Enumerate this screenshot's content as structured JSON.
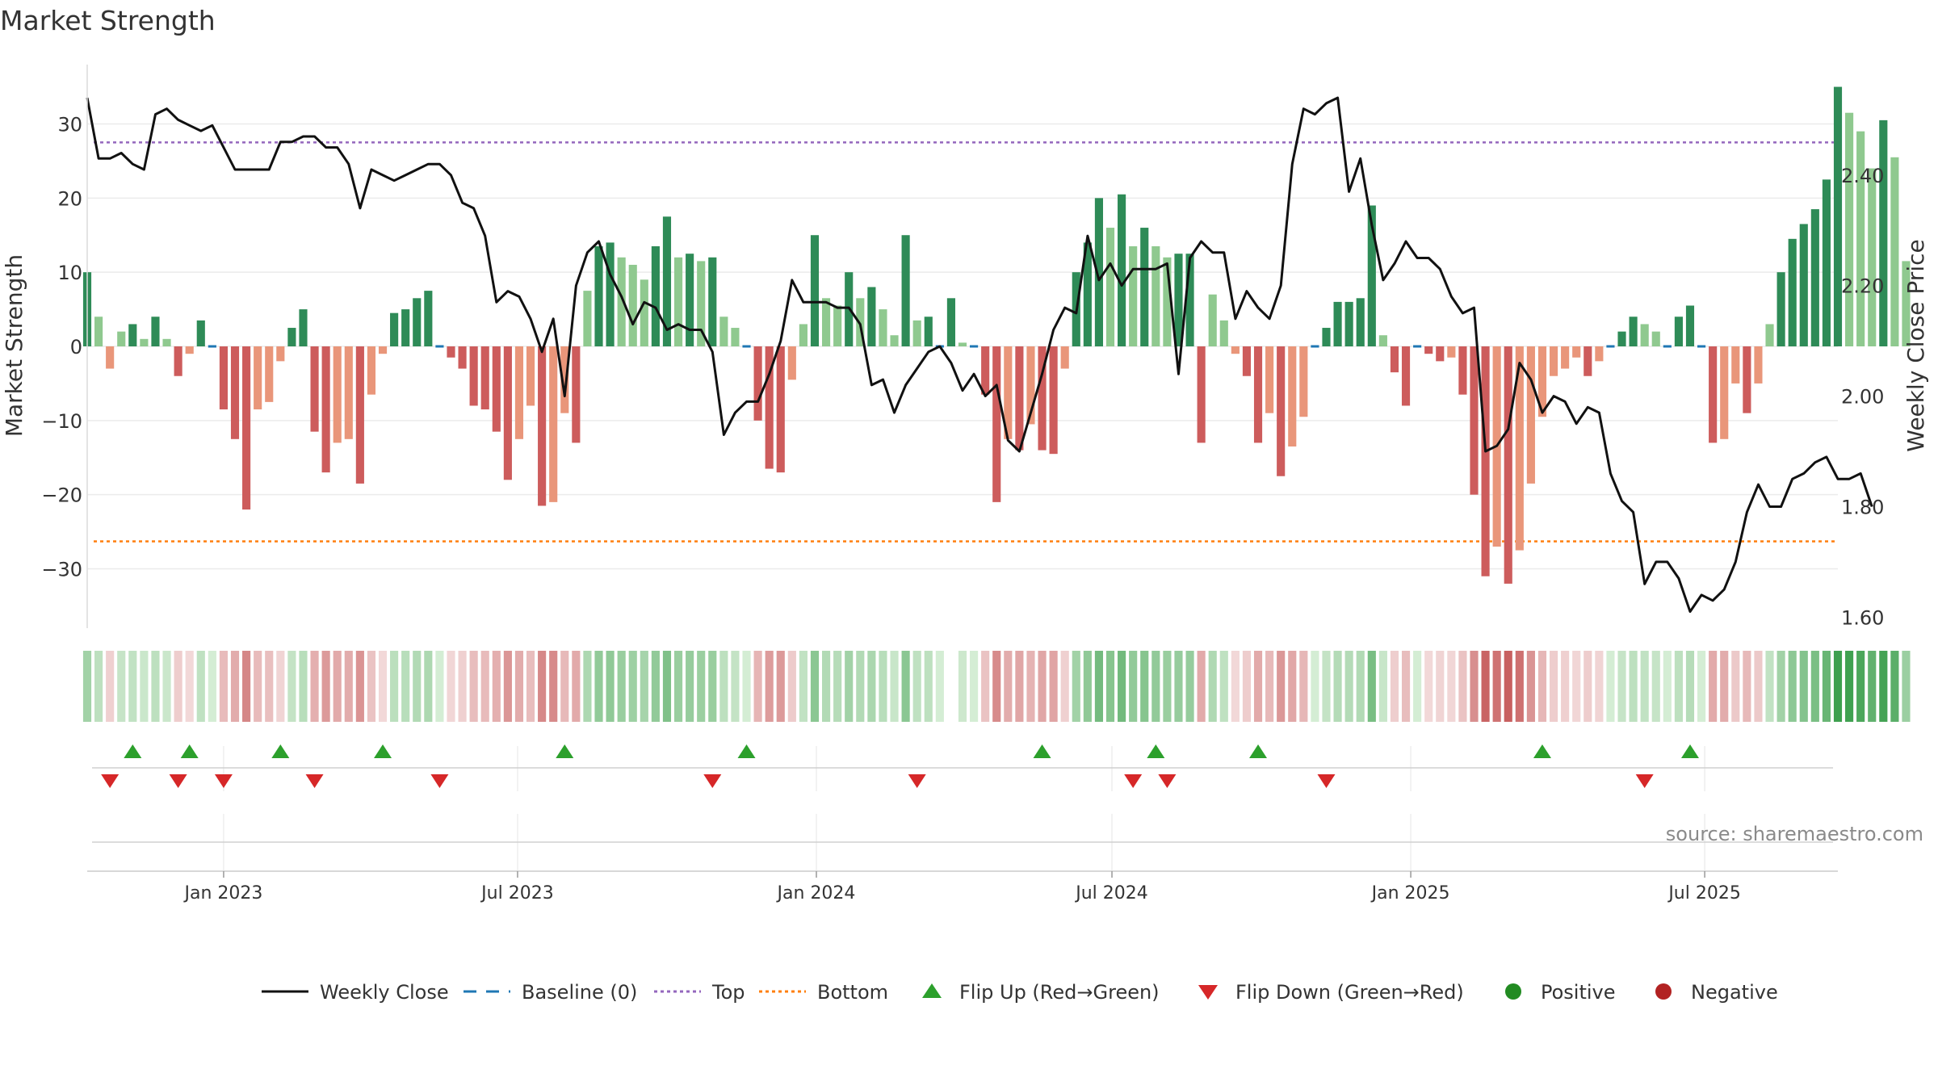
{
  "chart_data": {
    "type": "bar",
    "title": "Market Strength",
    "ylabel_left": "Market Strength",
    "ylabel_right": "Weekly Close Price",
    "ylim_left": [
      -38,
      38
    ],
    "ylim_right": [
      1.58,
      2.6
    ],
    "yticks_left": [
      30,
      20,
      10,
      0,
      -10,
      -20,
      -30
    ],
    "yticks_left_labels": [
      "30",
      "20",
      "10",
      "0",
      "−10",
      "−20",
      "−30"
    ],
    "yticks_right": [
      2.4,
      2.2,
      2.0,
      1.8,
      1.6
    ],
    "yticks_right_labels": [
      "2.40",
      "2.20",
      "2.00",
      "1.80",
      "1.60"
    ],
    "xlim": [
      "2022-10-09",
      "2025-09-21"
    ],
    "xticks": [
      "2023-01-01",
      "2023-07-01",
      "2024-01-01",
      "2024-07-01",
      "2025-01-01",
      "2025-07-01"
    ],
    "xtick_labels": [
      "Jan 2023",
      "Jul 2023",
      "Jan 2024",
      "Jul 2024",
      "Jan 2025",
      "Jul 2025"
    ],
    "start_date": "2022-10-09",
    "top_line": 27.5,
    "bottom_line": -26.3,
    "grid": true,
    "source": "source: sharemaestro.com",
    "colors": {
      "pos_strong": "#2e8b57",
      "pos_weak": "#8fc98f",
      "neg_strong": "#cd5c5c",
      "neg_weak": "#e9967a",
      "close": "#111111",
      "baseline": "#1f77b4",
      "top": "#9467bd",
      "bottom": "#ff7f0e",
      "flip_up": "#2ca02c",
      "flip_down": "#d62728",
      "positive": "#228b22",
      "negative": "#b22222"
    },
    "legend": [
      {
        "label": "Weekly Close",
        "kind": "line"
      },
      {
        "label": "Baseline (0)",
        "kind": "baseline"
      },
      {
        "label": "Top",
        "kind": "top"
      },
      {
        "label": "Bottom",
        "kind": "bottom"
      },
      {
        "label": "Flip Up (Red→Green)",
        "kind": "up"
      },
      {
        "label": "Flip Down (Green→Red)",
        "kind": "down"
      },
      {
        "label": "Positive",
        "kind": "pos"
      },
      {
        "label": "Negative",
        "kind": "neg"
      }
    ],
    "strength": [
      10,
      4,
      -3,
      2,
      3,
      1,
      4,
      1,
      -4,
      -1,
      3.5,
      0,
      -8.5,
      -12.5,
      -22,
      -8.5,
      -7.5,
      -2,
      2.5,
      5,
      -11.5,
      -17,
      -13,
      -12.5,
      -18.5,
      -6.5,
      -1,
      4.5,
      5,
      6.5,
      7.5,
      0,
      -1.5,
      -3,
      -8,
      -8.5,
      -11.5,
      -18,
      -12.5,
      -8,
      -21.5,
      -21,
      -9,
      -13,
      7.5,
      13.5,
      14,
      12,
      11,
      9,
      13.5,
      17.5,
      12,
      12.5,
      11.5,
      12,
      4,
      2.5,
      0,
      -10,
      -16.5,
      -17,
      -4.5,
      3,
      15,
      6.5,
      5.5,
      10,
      6.5,
      8,
      5,
      1.5,
      15,
      3.5,
      4,
      0,
      6.5,
      0.5,
      0,
      -6.5,
      -21,
      -12.5,
      -14,
      -10.5,
      -14,
      -14.5,
      -3,
      10,
      14,
      20,
      16,
      20.5,
      13.5,
      16,
      13.5,
      12,
      12.5,
      12.5,
      -13,
      7,
      3.5,
      -1,
      -4,
      -13,
      -9,
      -17.5,
      -13.5,
      -9.5,
      0,
      2.5,
      6,
      6,
      6.5,
      19,
      1.5,
      -3.5,
      -8,
      0,
      -1,
      -2,
      -1.5,
      -6.5,
      -20,
      -31,
      -27,
      -32,
      -27.5,
      -18.5,
      -9.5,
      -4,
      -3,
      -1.5,
      -4,
      -2,
      0,
      2,
      4,
      3,
      2,
      0,
      4,
      5.5,
      0,
      -13,
      -12.5,
      -5,
      -9,
      -5,
      3,
      10,
      14.5,
      16.5,
      18.5,
      22.5,
      35,
      31.5,
      29,
      24,
      30.5,
      25.5,
      11.5
    ],
    "close": [
      2.54,
      2.43,
      2.43,
      2.44,
      2.42,
      2.41,
      2.51,
      2.52,
      2.5,
      2.49,
      2.48,
      2.49,
      2.45,
      2.41,
      2.41,
      2.41,
      2.41,
      2.46,
      2.46,
      2.47,
      2.47,
      2.45,
      2.45,
      2.42,
      2.34,
      2.41,
      2.4,
      2.39,
      2.4,
      2.41,
      2.42,
      2.42,
      2.4,
      2.35,
      2.34,
      2.29,
      2.17,
      2.19,
      2.18,
      2.14,
      2.08,
      2.14,
      2.0,
      2.2,
      2.26,
      2.28,
      2.22,
      2.18,
      2.13,
      2.17,
      2.16,
      2.12,
      2.13,
      2.12,
      2.12,
      2.08,
      1.93,
      1.97,
      1.99,
      1.99,
      2.04,
      2.1,
      2.21,
      2.17,
      2.17,
      2.17,
      2.16,
      2.16,
      2.13,
      2.02,
      2.03,
      1.97,
      2.02,
      2.05,
      2.08,
      2.09,
      2.06,
      2.01,
      2.04,
      2.0,
      2.02,
      1.92,
      1.9,
      1.97,
      2.04,
      2.12,
      2.16,
      2.15,
      2.29,
      2.21,
      2.24,
      2.2,
      2.23,
      2.23,
      2.23,
      2.24,
      2.04,
      2.25,
      2.28,
      2.26,
      2.26,
      2.14,
      2.19,
      2.16,
      2.14,
      2.2,
      2.42,
      2.52,
      2.51,
      2.53,
      2.54,
      2.37,
      2.43,
      2.31,
      2.21,
      2.24,
      2.28,
      2.25,
      2.25,
      2.23,
      2.18,
      2.15,
      2.16,
      1.9,
      1.91,
      1.94,
      2.06,
      2.03,
      1.97,
      2.0,
      1.99,
      1.95,
      1.98,
      1.97,
      1.86,
      1.81,
      1.79,
      1.66,
      1.7,
      1.7,
      1.67,
      1.61,
      1.64,
      1.63,
      1.65,
      1.7,
      1.79,
      1.84,
      1.8,
      1.8,
      1.85,
      1.86,
      1.88,
      1.89,
      1.85,
      1.85,
      1.86,
      1.8
    ],
    "flips_up": [
      "2022-11-06",
      "2022-12-11",
      "2023-02-05",
      "2023-04-09",
      "2023-07-30",
      "2023-11-19",
      "2024-05-19",
      "2024-07-28",
      "2024-09-29",
      "2025-03-23",
      "2025-06-22"
    ],
    "flips_down": [
      "2022-10-23",
      "2022-12-04",
      "2023-01-01",
      "2023-02-26",
      "2023-05-14",
      "2023-10-29",
      "2024-03-03",
      "2024-07-14",
      "2024-08-04",
      "2024-11-10",
      "2025-05-25"
    ]
  }
}
